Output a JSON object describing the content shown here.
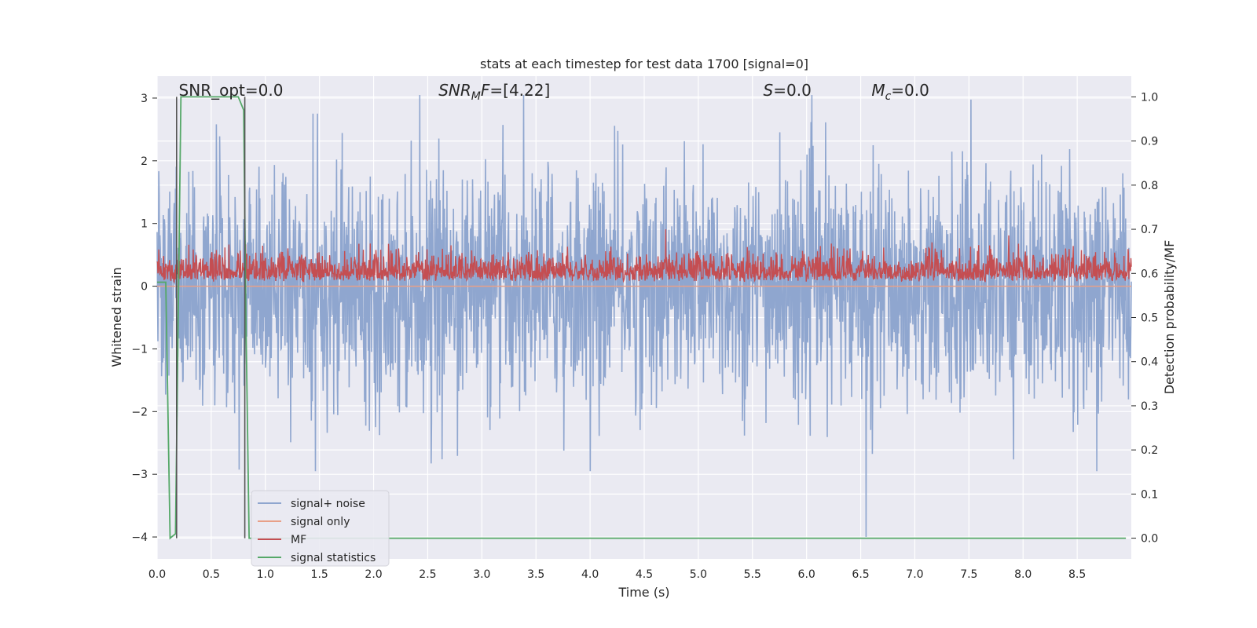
{
  "chart_data": {
    "type": "line",
    "title": "stats at each timestep for test data 1700 [signal=0]",
    "xlabel": "Time (s)",
    "ylabel": "Whitened strain",
    "y2label": "Detection probability/MF",
    "xlim": [
      0.0,
      9.0
    ],
    "ylim": [
      -4.35,
      3.35
    ],
    "y2lim": [
      -0.047,
      1.047
    ],
    "x_ticks": [
      "0.0",
      "0.5",
      "1.0",
      "1.5",
      "2.0",
      "2.5",
      "3.0",
      "3.5",
      "4.0",
      "4.5",
      "5.0",
      "5.5",
      "6.0",
      "6.5",
      "7.0",
      "7.5",
      "8.0",
      "8.5"
    ],
    "y_ticks": [
      "3",
      "2",
      "1",
      "0",
      "−1",
      "−2",
      "−3",
      "−4"
    ],
    "y2_ticks": [
      "1.0",
      "0.9",
      "0.8",
      "0.7",
      "0.6",
      "0.5",
      "0.4",
      "0.3",
      "0.2",
      "0.1",
      "0.0"
    ],
    "grid": true,
    "legend_position": "lower-left",
    "annotations": [
      {
        "id": "snr-opt",
        "prefix": "SNR_opt=0.0",
        "x": 0.2
      },
      {
        "id": "snr-mf",
        "base": "SNR",
        "sub": "M",
        "mid": "F",
        "suffix": "=[4.22]",
        "x": 2.6
      },
      {
        "id": "s-value",
        "italic": "S",
        "suffix": "=0.0",
        "x": 5.6
      },
      {
        "id": "mc-value",
        "italic": "M",
        "sub": "c",
        "suffix": "=0.0",
        "x": 6.6
      }
    ],
    "vertical_lines": [
      0.18,
      0.81
    ],
    "series": [
      {
        "name": "signal+ noise",
        "color": "#8fa6cf",
        "style": "noise",
        "axis": "left",
        "amplitude": 1.0,
        "range": [
          -4.0,
          3.05
        ]
      },
      {
        "name": "signal only",
        "color": "#e8a088",
        "style": "flat",
        "axis": "left",
        "value": 0.0
      },
      {
        "name": "MF",
        "color": "#c44e52",
        "style": "mf",
        "axis": "right",
        "range": [
          0.58,
          0.7
        ]
      },
      {
        "name": "signal statistics",
        "color": "#55a868",
        "style": "stat",
        "axis": "right",
        "x": [
          0.0,
          0.05,
          0.08,
          0.12,
          0.17,
          0.22,
          0.25,
          0.3,
          0.5,
          0.75,
          0.8,
          0.82,
          0.85,
          0.88,
          0.92,
          1.0,
          2.0,
          3.0,
          4.0,
          5.0,
          6.0,
          7.0,
          8.0,
          8.95
        ],
        "y": [
          0.58,
          0.58,
          0.58,
          0.0,
          0.01,
          1.0,
          1.0,
          1.0,
          1.0,
          1.0,
          0.97,
          0.5,
          0.0,
          0.0,
          0.0,
          0.0,
          0.0,
          0.0,
          0.0,
          0.0,
          0.0,
          0.0,
          0.0,
          0.0
        ]
      }
    ]
  },
  "colors": {
    "plot_bg": "#eaeaf2",
    "grid": "#ffffff",
    "vline": "#555555"
  }
}
